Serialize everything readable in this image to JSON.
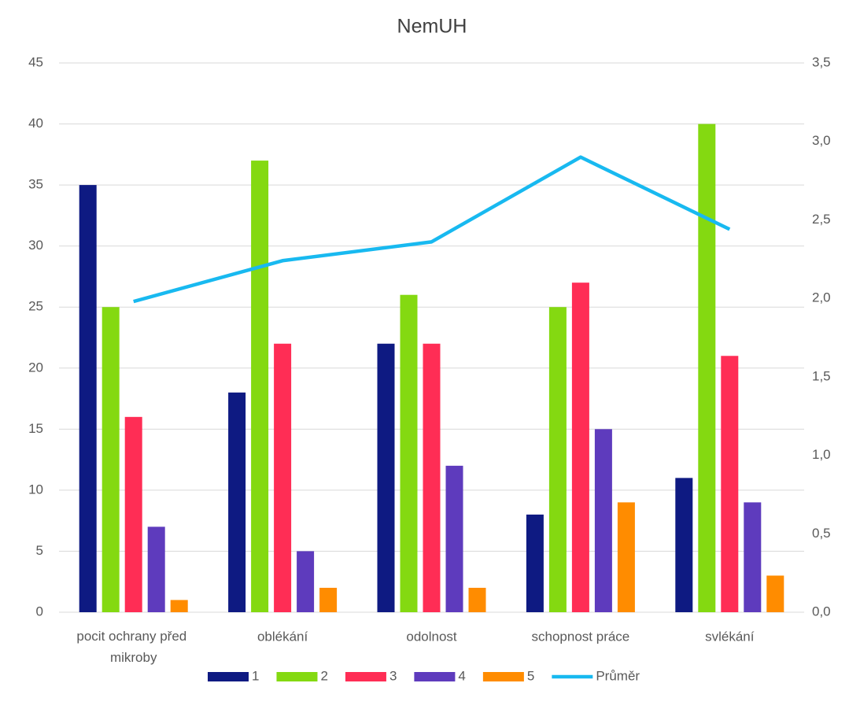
{
  "chart_data": {
    "type": "bar",
    "title": "NemUH",
    "categories": [
      "pocit ochrany před mikroby",
      "oblékání",
      "odolnost",
      "schopnost práce",
      "svlékání"
    ],
    "series": [
      {
        "name": "1",
        "color": "#0e1a82",
        "values": [
          35,
          18,
          22,
          8,
          11
        ]
      },
      {
        "name": "2",
        "color": "#84d911",
        "values": [
          25,
          37,
          26,
          25,
          40
        ]
      },
      {
        "name": "3",
        "color": "#ff2d55",
        "values": [
          16,
          22,
          22,
          27,
          21
        ]
      },
      {
        "name": "4",
        "color": "#5e3bbd",
        "values": [
          7,
          5,
          12,
          15,
          9
        ]
      },
      {
        "name": "5",
        "color": "#ff8c00",
        "values": [
          1,
          2,
          2,
          9,
          3
        ]
      },
      {
        "name": "Průměr",
        "color": "#18b9f0",
        "type": "line",
        "axis": "y2",
        "values": [
          1.98,
          2.24,
          2.36,
          2.9,
          2.44
        ]
      }
    ],
    "ylim": [
      0,
      45
    ],
    "yticks": [
      0,
      5,
      10,
      15,
      20,
      25,
      30,
      35,
      40,
      45
    ],
    "y2lim": [
      0,
      3.5
    ],
    "y2ticks": [
      {
        "value": 0,
        "label": "0,0"
      },
      {
        "value": 0.5,
        "label": "0,5"
      },
      {
        "value": 1,
        "label": "1,0"
      },
      {
        "value": 1.5,
        "label": "1,5"
      },
      {
        "value": 2,
        "label": "2,0"
      },
      {
        "value": 2.5,
        "label": "2,5"
      },
      {
        "value": 3,
        "label": "3,0"
      },
      {
        "value": 3.5,
        "label": "3,5"
      }
    ],
    "grid": true,
    "legend": "bottom"
  }
}
